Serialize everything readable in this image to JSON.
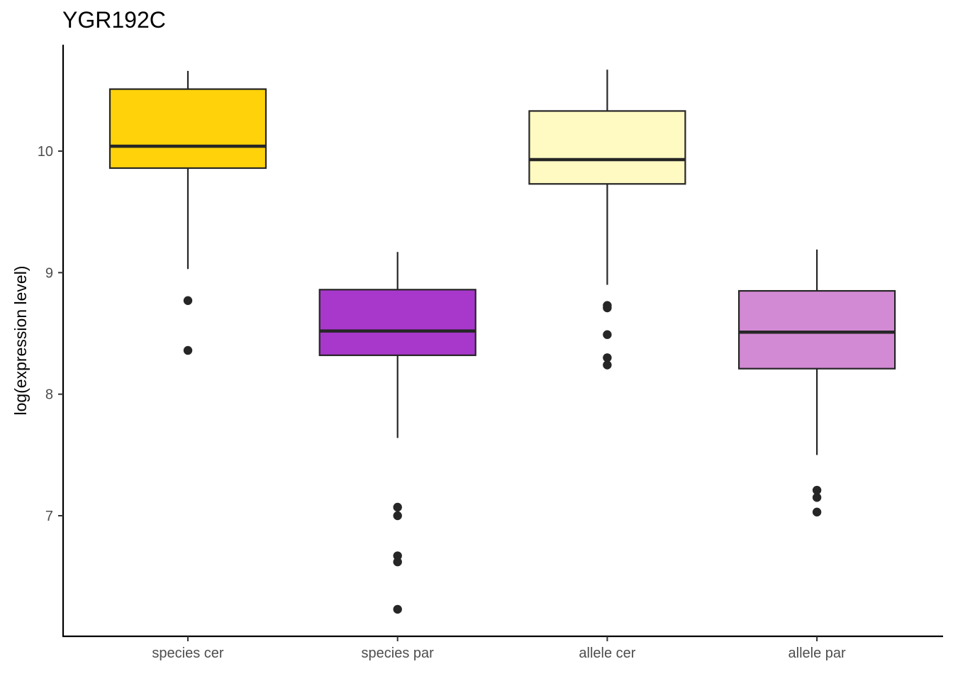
{
  "chart_data": {
    "type": "boxplot",
    "title": "YGR192C",
    "xlabel": "",
    "ylabel": "log(expression level)",
    "ylim": [
      6.0,
      10.9
    ],
    "y_ticks": [
      7,
      8,
      9,
      10
    ],
    "grid": false,
    "legend": "none",
    "categories": [
      "species cer",
      "species par",
      "allele cer",
      "allele par"
    ],
    "boxes": [
      {
        "category": "species cer",
        "color": "#FFD20A",
        "whisker_low": 9.03,
        "q1": 9.86,
        "median": 10.04,
        "q3": 10.51,
        "whisker_high": 10.66,
        "outliers": [
          8.77,
          8.36
        ]
      },
      {
        "category": "species par",
        "color": "#A838CC",
        "whisker_low": 7.64,
        "q1": 8.32,
        "median": 8.52,
        "q3": 8.86,
        "whisker_high": 9.17,
        "outliers": [
          7.07,
          7.0,
          6.67,
          6.62,
          6.23
        ]
      },
      {
        "category": "allele cer",
        "color": "#FFF9C2",
        "whisker_low": 8.9,
        "q1": 9.73,
        "median": 9.93,
        "q3": 10.33,
        "whisker_high": 10.67,
        "outliers": [
          8.73,
          8.71,
          8.49,
          8.3,
          8.24
        ]
      },
      {
        "category": "allele par",
        "color": "#D38AD4",
        "whisker_low": 7.5,
        "q1": 8.21,
        "median": 8.51,
        "q3": 8.85,
        "whisker_high": 9.19,
        "outliers": [
          7.21,
          7.15,
          7.03
        ]
      }
    ]
  }
}
